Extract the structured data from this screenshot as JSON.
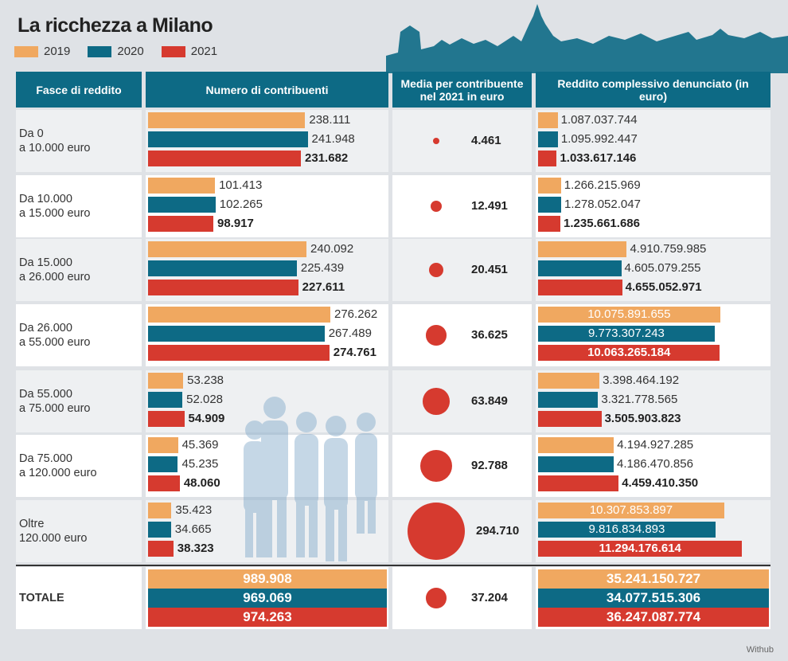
{
  "chart_data": {
    "type": "bar",
    "title": "La ricchezza a Milano",
    "legend": [
      "2019",
      "2020",
      "2021"
    ],
    "colors": {
      "2019": "#f0a860",
      "2020": "#0d6a85",
      "2021": "#d63a2f",
      "header": "#0d6a85"
    },
    "columns": [
      "Fasce di reddito",
      "Numero di contribuenti",
      "Media per contribuente nel 2021  in euro",
      "Reddito complessivo denunciato (in euro)"
    ],
    "rows": [
      {
        "band": [
          "Da 0",
          "a 10.000 euro"
        ],
        "contributors": [
          238111,
          241948,
          231682
        ],
        "contributors_labels": [
          "238.111",
          "241.948",
          "231.682"
        ],
        "avg_2021": 4461,
        "avg_label": "4.461",
        "income": [
          1087037744,
          1095992447,
          1033617146
        ],
        "income_labels": [
          "1.087.037.744",
          "1.095.992.447",
          "1.033.617.146"
        ]
      },
      {
        "band": [
          "Da 10.000",
          "a 15.000 euro"
        ],
        "contributors": [
          101413,
          102265,
          98917
        ],
        "contributors_labels": [
          "101.413",
          "102.265",
          "98.917"
        ],
        "avg_2021": 12491,
        "avg_label": "12.491",
        "income": [
          1266215969,
          1278052047,
          1235661686
        ],
        "income_labels": [
          "1.266.215.969",
          "1.278.052.047",
          "1.235.661.686"
        ]
      },
      {
        "band": [
          "Da 15.000",
          "a 26.000 euro"
        ],
        "contributors": [
          240092,
          225439,
          227611
        ],
        "contributors_labels": [
          "240.092",
          "225.439",
          "227.611"
        ],
        "avg_2021": 20451,
        "avg_label": "20.451",
        "income": [
          4910759985,
          4605079255,
          4655052971
        ],
        "income_labels": [
          "4.910.759.985",
          "4.605.079.255",
          "4.655.052.971"
        ]
      },
      {
        "band": [
          "Da 26.000",
          "a 55.000 euro"
        ],
        "contributors": [
          276262,
          267489,
          274761
        ],
        "contributors_labels": [
          "276.262",
          "267.489",
          "274.761"
        ],
        "avg_2021": 36625,
        "avg_label": "36.625",
        "income": [
          10075891655,
          9773307243,
          10063265184
        ],
        "income_labels": [
          "10.075.891.655",
          "9.773.307.243",
          "10.063.265.184"
        ]
      },
      {
        "band": [
          "Da 55.000",
          "a 75.000 euro"
        ],
        "contributors": [
          53238,
          52028,
          54909
        ],
        "contributors_labels": [
          "53.238",
          "52.028",
          "54.909"
        ],
        "avg_2021": 63849,
        "avg_label": "63.849",
        "income": [
          3398464192,
          3321778565,
          3505903823
        ],
        "income_labels": [
          "3.398.464.192",
          "3.321.778.565",
          "3.505.903.823"
        ]
      },
      {
        "band": [
          "Da 75.000",
          "a 120.000 euro"
        ],
        "contributors": [
          45369,
          45235,
          48060
        ],
        "contributors_labels": [
          "45.369",
          "45.235",
          "48.060"
        ],
        "avg_2021": 92788,
        "avg_label": "92.788",
        "income": [
          4194927285,
          4186470856,
          4459410350
        ],
        "income_labels": [
          "4.194.927.285",
          "4.186.470.856",
          "4.459.410.350"
        ]
      },
      {
        "band": [
          "Oltre",
          "120.000 euro"
        ],
        "contributors": [
          35423,
          34665,
          38323
        ],
        "contributors_labels": [
          "35.423",
          "34.665",
          "38.323"
        ],
        "avg_2021": 294710,
        "avg_label": "294.710",
        "income": [
          10307853897,
          9816834893,
          11294176614
        ],
        "income_labels": [
          "10.307.853.897",
          "9.816.834.893",
          "11.294.176.614"
        ]
      }
    ],
    "total": {
      "band": [
        "TOTALE"
      ],
      "contributors": [
        989908,
        969069,
        974263
      ],
      "contributors_labels": [
        "989.908",
        "969.069",
        "974.263"
      ],
      "avg_2021": 37204,
      "avg_label": "37.204",
      "income": [
        35241150727,
        34077515306,
        36247087774
      ],
      "income_labels": [
        "35.241.150.727",
        "34.077.515.306",
        "36.247.087.774"
      ]
    },
    "source": "Withub"
  }
}
